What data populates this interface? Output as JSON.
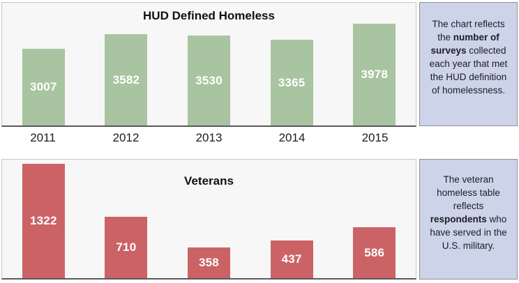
{
  "colors": {
    "page_bg": "#ffffff",
    "panel_bg": "#f7f7f7",
    "panel_border": "#c6c6c6",
    "axis_line": "#59595b",
    "bar_label": "#ffffff",
    "sidebar_bg": "#cdd4e9",
    "sidebar_border": "#8f8f99",
    "note_text": "#1c1c28",
    "green_bar": "#a9c4a1",
    "red_bar": "#cb6366"
  },
  "chart_data": [
    {
      "type": "bar",
      "title": "HUD Defined Homeless",
      "categories": [
        "2011",
        "2012",
        "2013",
        "2014",
        "2015"
      ],
      "values": [
        3007,
        3582,
        3530,
        3365,
        3978
      ],
      "bar_color": "#a9c4a1",
      "value_labels_inside_bars": true,
      "xlabel": "",
      "ylabel": "",
      "ylim": [
        0,
        4800
      ],
      "grid": false,
      "legend": false,
      "show_x_labels": true
    },
    {
      "type": "bar",
      "title": "Veterans",
      "categories": [
        "2011",
        "2012",
        "2013",
        "2014",
        "2015"
      ],
      "values": [
        1322,
        710,
        358,
        437,
        586
      ],
      "bar_color": "#cb6366",
      "value_labels_inside_bars": true,
      "xlabel": "",
      "ylabel": "",
      "ylim": [
        0,
        1370
      ],
      "grid": false,
      "legend": false,
      "show_x_labels": false
    }
  ],
  "notes": [
    {
      "lines": [
        [
          {
            "t": "The chart reflects"
          }
        ],
        [
          {
            "t": "the "
          },
          {
            "t": "number of",
            "b": true
          }
        ],
        [
          {
            "t": "surveys",
            "b": true
          },
          {
            "t": " collected"
          }
        ],
        [
          {
            "t": "each year that met"
          }
        ],
        [
          {
            "t": "the HUD definition"
          }
        ],
        [
          {
            "t": "of homelessness."
          }
        ]
      ]
    },
    {
      "lines": [
        [
          {
            "t": "The veteran"
          }
        ],
        [
          {
            "t": "homeless table"
          }
        ],
        [
          {
            "t": "reflects"
          }
        ],
        [
          {
            "t": "respondents",
            "b": true
          },
          {
            "t": " who"
          }
        ],
        [
          {
            "t": "have served in the"
          }
        ],
        [
          {
            "t": "U.S. military."
          }
        ]
      ]
    }
  ]
}
